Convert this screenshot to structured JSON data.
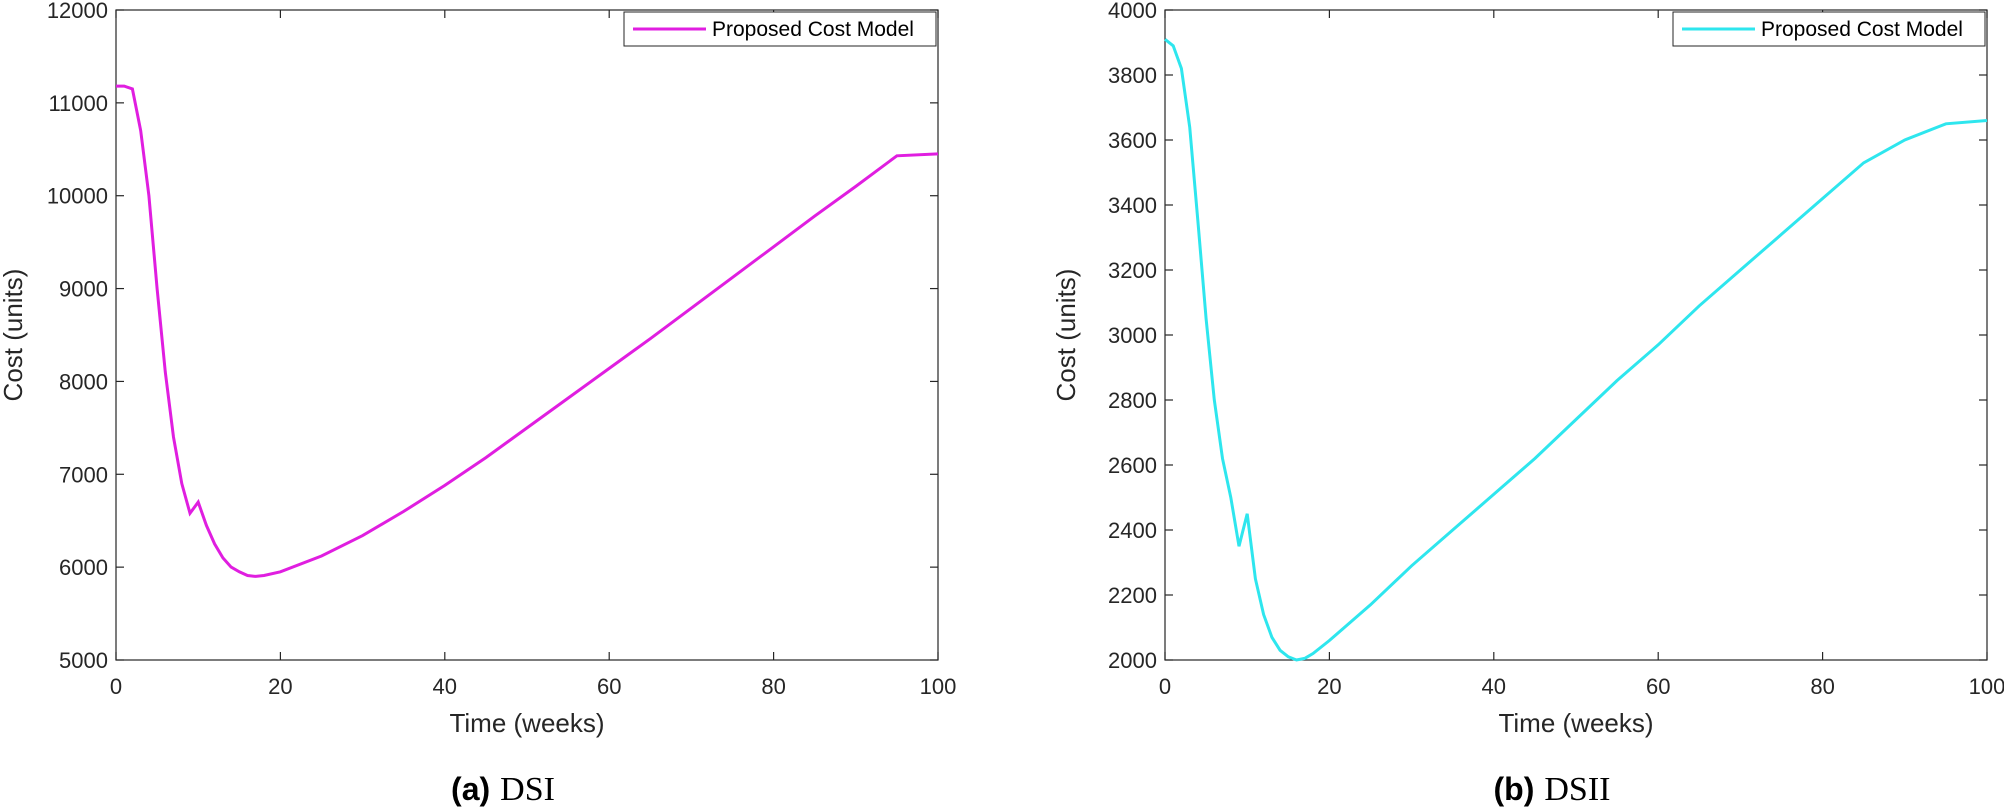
{
  "chart_data": [
    {
      "type": "line",
      "caption_letter": "(a)",
      "caption_name": "DSI",
      "xlabel": "Time (weeks)",
      "ylabel": "Cost (units)",
      "xlim": [
        0,
        100
      ],
      "ylim": [
        5000,
        12000
      ],
      "xticks": [
        "0",
        "20",
        "40",
        "60",
        "80",
        "100"
      ],
      "yticks": [
        "5000",
        "6000",
        "7000",
        "8000",
        "9000",
        "10000",
        "11000",
        "12000"
      ],
      "legend_position": "top-right",
      "grid": false,
      "series": [
        {
          "name": "Proposed Cost Model",
          "color": "#e01ee0",
          "x": [
            0,
            1,
            2,
            3,
            4,
            5,
            6,
            7,
            8,
            9,
            10,
            11,
            12,
            13,
            14,
            15,
            16,
            17,
            18,
            20,
            25,
            30,
            35,
            40,
            45,
            50,
            55,
            60,
            65,
            70,
            75,
            80,
            85,
            90,
            95,
            100
          ],
          "y": [
            11180,
            11180,
            11150,
            10700,
            10000,
            9000,
            8100,
            7400,
            6900,
            6580,
            6700,
            6450,
            6250,
            6100,
            6000,
            5950,
            5910,
            5900,
            5910,
            5950,
            6120,
            6340,
            6600,
            6880,
            7180,
            7500,
            7820,
            8140,
            8460,
            8790,
            9120,
            9450,
            9780,
            10100,
            10430,
            10450
          ]
        }
      ]
    },
    {
      "type": "line",
      "caption_letter": "(b)",
      "caption_name": "DSII",
      "xlabel": "Time (weeks)",
      "ylabel": "Cost (units)",
      "xlim": [
        0,
        100
      ],
      "ylim": [
        2000,
        4000
      ],
      "xticks": [
        "0",
        "20",
        "40",
        "60",
        "80",
        "100"
      ],
      "yticks": [
        "2000",
        "2200",
        "2400",
        "2600",
        "2800",
        "3000",
        "3200",
        "3400",
        "3600",
        "3800",
        "4000"
      ],
      "legend_position": "top-right",
      "grid": false,
      "series": [
        {
          "name": "Proposed Cost Model",
          "color": "#2ee6ee",
          "x": [
            0,
            1,
            2,
            3,
            4,
            5,
            6,
            7,
            8,
            9,
            10,
            11,
            12,
            13,
            14,
            15,
            16,
            17,
            18,
            20,
            25,
            30,
            35,
            40,
            45,
            50,
            55,
            60,
            65,
            70,
            75,
            80,
            85,
            90,
            95,
            100
          ],
          "y": [
            3910,
            3890,
            3820,
            3640,
            3350,
            3050,
            2800,
            2620,
            2500,
            2350,
            2450,
            2250,
            2140,
            2070,
            2030,
            2010,
            2000,
            2005,
            2020,
            2060,
            2170,
            2290,
            2400,
            2510,
            2620,
            2740,
            2860,
            2970,
            3090,
            3200,
            3310,
            3420,
            3530,
            3600,
            3650,
            3660
          ]
        }
      ]
    }
  ]
}
